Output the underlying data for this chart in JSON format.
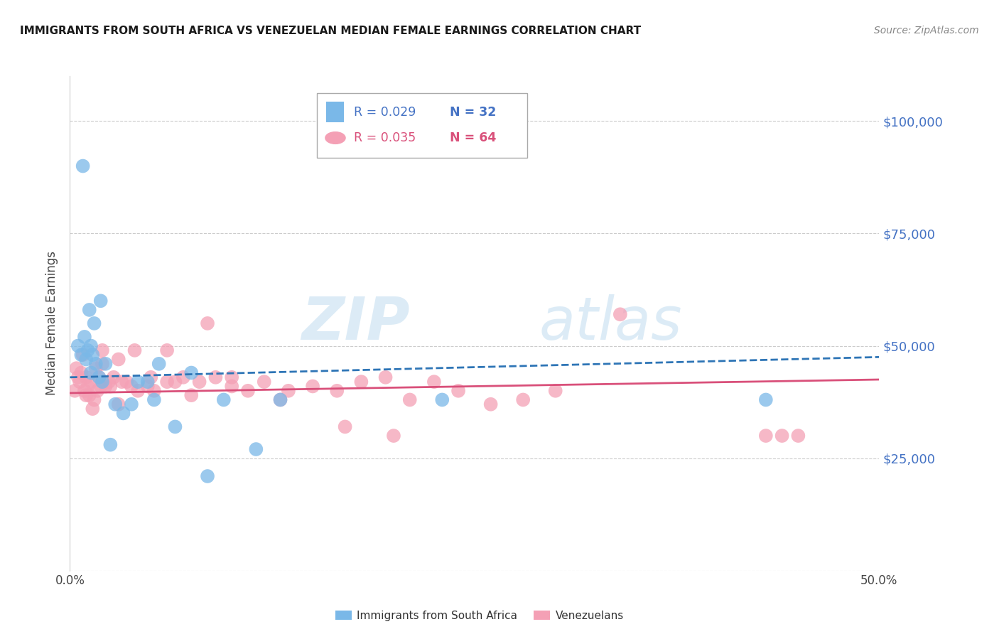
{
  "title": "IMMIGRANTS FROM SOUTH AFRICA VS VENEZUELAN MEDIAN FEMALE EARNINGS CORRELATION CHART",
  "source": "Source: ZipAtlas.com",
  "ylabel": "Median Female Earnings",
  "xlim": [
    0.0,
    0.5
  ],
  "ylim": [
    0,
    110000
  ],
  "yticks": [
    0,
    25000,
    50000,
    75000,
    100000
  ],
  "ytick_labels": [
    "",
    "$25,000",
    "$50,000",
    "$75,000",
    "$100,000"
  ],
  "xticks": [
    0.0,
    0.1,
    0.2,
    0.3,
    0.4,
    0.5
  ],
  "watermark_ZIP": "ZIP",
  "watermark_atlas": "atlas",
  "legend_R1": "R = 0.029",
  "legend_N1": "N = 32",
  "legend_R2": "R = 0.035",
  "legend_N2": "N = 64",
  "color_blue": "#7ab8e8",
  "color_pink": "#f4a0b5",
  "color_blue_dark": "#2e75b6",
  "color_pink_dark": "#d9507a",
  "color_blue_text": "#4472c4",
  "color_pink_text": "#d9507a",
  "blue_x": [
    0.005,
    0.007,
    0.008,
    0.009,
    0.01,
    0.011,
    0.012,
    0.013,
    0.013,
    0.014,
    0.015,
    0.016,
    0.018,
    0.019,
    0.02,
    0.022,
    0.025,
    0.028,
    0.033,
    0.038,
    0.042,
    0.048,
    0.052,
    0.055,
    0.065,
    0.075,
    0.085,
    0.095,
    0.115,
    0.13,
    0.23,
    0.43
  ],
  "blue_y": [
    50000,
    48000,
    90000,
    52000,
    47000,
    49000,
    58000,
    50000,
    44000,
    48000,
    55000,
    46000,
    43000,
    60000,
    42000,
    46000,
    28000,
    37000,
    35000,
    37000,
    42000,
    42000,
    38000,
    46000,
    32000,
    44000,
    21000,
    38000,
    27000,
    38000,
    38000,
    38000
  ],
  "pink_x": [
    0.003,
    0.004,
    0.005,
    0.006,
    0.007,
    0.008,
    0.009,
    0.01,
    0.01,
    0.011,
    0.012,
    0.013,
    0.014,
    0.015,
    0.016,
    0.017,
    0.018,
    0.019,
    0.02,
    0.022,
    0.024,
    0.025,
    0.027,
    0.03,
    0.032,
    0.035,
    0.038,
    0.042,
    0.048,
    0.052,
    0.06,
    0.065,
    0.07,
    0.075,
    0.08,
    0.09,
    0.1,
    0.11,
    0.12,
    0.135,
    0.15,
    0.165,
    0.18,
    0.195,
    0.21,
    0.225,
    0.24,
    0.26,
    0.28,
    0.3,
    0.02,
    0.03,
    0.04,
    0.05,
    0.06,
    0.085,
    0.1,
    0.13,
    0.17,
    0.2,
    0.34,
    0.43,
    0.44,
    0.45
  ],
  "pink_y": [
    40000,
    45000,
    43000,
    42000,
    44000,
    48000,
    40000,
    39000,
    43000,
    41000,
    39000,
    42000,
    36000,
    38000,
    45000,
    40000,
    43000,
    41000,
    46000,
    41000,
    42000,
    41000,
    43000,
    37000,
    42000,
    42000,
    41000,
    40000,
    41000,
    40000,
    42000,
    42000,
    43000,
    39000,
    42000,
    43000,
    41000,
    40000,
    42000,
    40000,
    41000,
    40000,
    42000,
    43000,
    38000,
    42000,
    40000,
    37000,
    38000,
    40000,
    49000,
    47000,
    49000,
    43000,
    49000,
    55000,
    43000,
    38000,
    32000,
    30000,
    57000,
    30000,
    30000,
    30000
  ],
  "blue_trend_x": [
    0.0,
    0.5
  ],
  "blue_trend_y": [
    43000,
    47500
  ],
  "pink_trend_x": [
    0.0,
    0.5
  ],
  "pink_trend_y": [
    39500,
    42500
  ],
  "background_color": "#ffffff",
  "grid_color": "#cccccc"
}
